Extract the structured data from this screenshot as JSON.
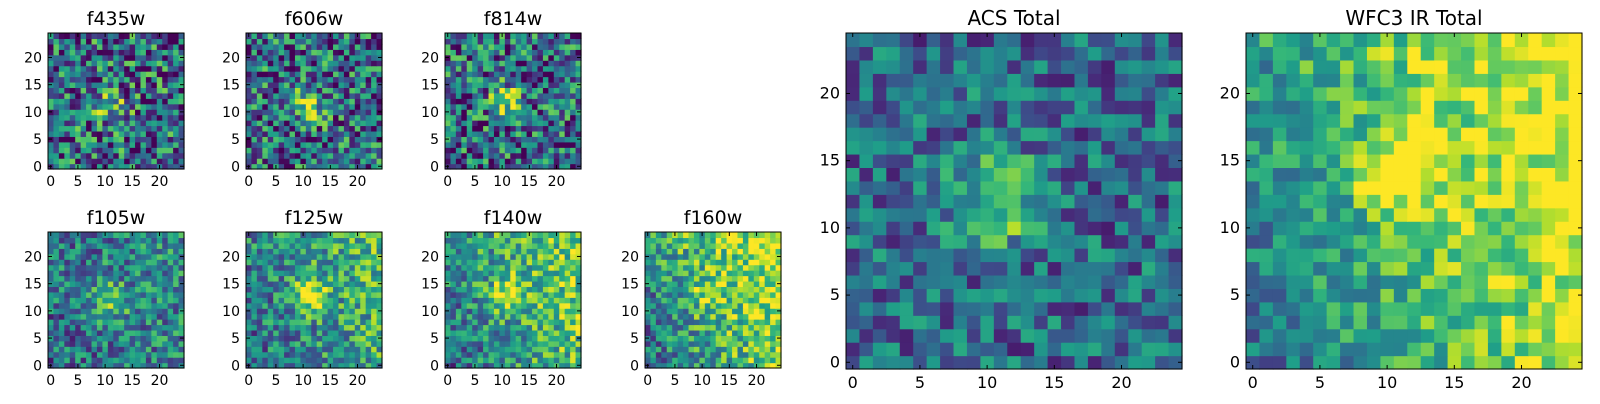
{
  "figure": {
    "panel_titles": [
      "f435w",
      "f606w",
      "f814w",
      "f105w",
      "f125w",
      "f140w",
      "f160w",
      "ACS Total",
      "WFC3 IR Total"
    ]
  },
  "chart_data": [
    {
      "type": "heatmap",
      "title": "f435w",
      "grid_size": 25,
      "colormap": "viridis",
      "xlim": [
        0,
        24
      ],
      "ylim": [
        0,
        24
      ],
      "xticks": [
        0,
        5,
        10,
        15,
        20
      ],
      "yticks": [
        0,
        5,
        10,
        15,
        20
      ],
      "source_center": [
        11,
        11
      ],
      "source_strength": 0.3,
      "noise": 0.9,
      "gradient": [
        0,
        0
      ],
      "seed": 3
    },
    {
      "type": "heatmap",
      "title": "f606w",
      "grid_size": 25,
      "colormap": "viridis",
      "xlim": [
        0,
        24
      ],
      "ylim": [
        0,
        24
      ],
      "xticks": [
        0,
        5,
        10,
        15,
        20
      ],
      "yticks": [
        0,
        5,
        10,
        15,
        20
      ],
      "source_center": [
        11,
        11
      ],
      "source_strength": 0.45,
      "noise": 0.85,
      "gradient": [
        0,
        0
      ],
      "seed": 7
    },
    {
      "type": "heatmap",
      "title": "f814w",
      "grid_size": 25,
      "colormap": "viridis",
      "xlim": [
        0,
        24
      ],
      "ylim": [
        0,
        24
      ],
      "xticks": [
        0,
        5,
        10,
        15,
        20
      ],
      "yticks": [
        0,
        5,
        10,
        15,
        20
      ],
      "source_center": [
        11,
        12
      ],
      "source_strength": 0.45,
      "noise": 0.85,
      "gradient": [
        0,
        0
      ],
      "seed": 11
    },
    {
      "type": "heatmap",
      "title": "f105w",
      "grid_size": 25,
      "colormap": "viridis",
      "xlim": [
        0,
        24
      ],
      "ylim": [
        0,
        24
      ],
      "xticks": [
        0,
        5,
        10,
        15,
        20
      ],
      "yticks": [
        0,
        5,
        10,
        15,
        20
      ],
      "source_center": [
        11,
        12
      ],
      "source_strength": 0.4,
      "noise": 0.6,
      "gradient": [
        0.1,
        0.05
      ],
      "seed": 13
    },
    {
      "type": "heatmap",
      "title": "f125w",
      "grid_size": 25,
      "colormap": "viridis",
      "xlim": [
        0,
        24
      ],
      "ylim": [
        0,
        24
      ],
      "xticks": [
        0,
        5,
        10,
        15,
        20
      ],
      "yticks": [
        0,
        5,
        10,
        15,
        20
      ],
      "source_center": [
        11,
        13
      ],
      "source_strength": 0.45,
      "noise": 0.6,
      "gradient": [
        0.25,
        0.1
      ],
      "seed": 17
    },
    {
      "type": "heatmap",
      "title": "f140w",
      "grid_size": 25,
      "colormap": "viridis",
      "xlim": [
        0,
        24
      ],
      "ylim": [
        0,
        24
      ],
      "xticks": [
        0,
        5,
        10,
        15,
        20
      ],
      "yticks": [
        0,
        5,
        10,
        15,
        20
      ],
      "source_center": [
        11,
        13
      ],
      "source_strength": 0.4,
      "noise": 0.6,
      "gradient": [
        0.35,
        0.15
      ],
      "seed": 19
    },
    {
      "type": "heatmap",
      "title": "f160w",
      "grid_size": 25,
      "colormap": "viridis",
      "xlim": [
        0,
        24
      ],
      "ylim": [
        0,
        24
      ],
      "xticks": [
        0,
        5,
        10,
        15,
        20
      ],
      "yticks": [
        0,
        5,
        10,
        15,
        20
      ],
      "source_center": [
        11,
        13
      ],
      "source_strength": 0.2,
      "noise": 0.6,
      "gradient": [
        0.45,
        0.2
      ],
      "seed": 23
    },
    {
      "type": "heatmap",
      "title": "ACS Total",
      "grid_size": 25,
      "colormap": "viridis",
      "xlim": [
        0,
        24
      ],
      "ylim": [
        0,
        24
      ],
      "xticks": [
        0,
        5,
        10,
        15,
        20
      ],
      "yticks": [
        0,
        5,
        10,
        15,
        20
      ],
      "source_center": [
        11,
        12
      ],
      "source_strength": 0.5,
      "noise": 0.55,
      "gradient": [
        0,
        0
      ],
      "seed": 29
    },
    {
      "type": "heatmap",
      "title": "WFC3 IR Total",
      "grid_size": 25,
      "colormap": "viridis",
      "xlim": [
        0,
        24
      ],
      "ylim": [
        0,
        24
      ],
      "xticks": [
        0,
        5,
        10,
        15,
        20
      ],
      "yticks": [
        0,
        5,
        10,
        15,
        20
      ],
      "source_center": [
        11,
        14
      ],
      "source_strength": 0.45,
      "noise": 0.45,
      "gradient": [
        0.55,
        0.2
      ],
      "seed": 31
    }
  ]
}
